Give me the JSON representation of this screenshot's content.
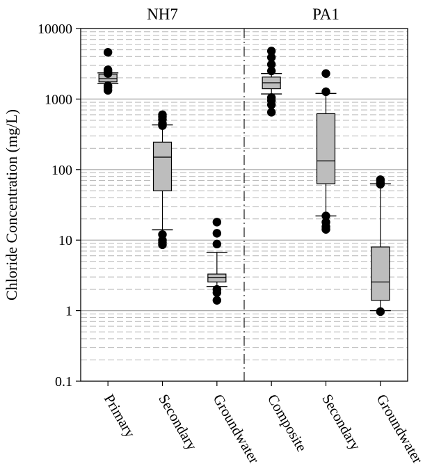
{
  "chart_data": {
    "type": "boxplot",
    "scale": "log",
    "ylabel": "Chloride Concentration (mg/L)",
    "ylim": [
      0.1,
      10000
    ],
    "yticks": [
      {
        "value": 0.1,
        "label": "0.1"
      },
      {
        "value": 1,
        "label": "1"
      },
      {
        "value": 10,
        "label": "10"
      },
      {
        "value": 100,
        "label": "100"
      },
      {
        "value": 1000,
        "label": "1000"
      },
      {
        "value": 10000,
        "label": "10000"
      }
    ],
    "groups": [
      {
        "label": "NH7",
        "start": 0,
        "count": 3
      },
      {
        "label": "PA1",
        "start": 3,
        "count": 3
      }
    ],
    "categories": [
      "Primary",
      "Secondary",
      "Groundwater",
      "Composite",
      "Secondary",
      "Groundwater"
    ],
    "boxes": [
      {
        "name": "Primary",
        "whisker_low": 1650,
        "q1": 1750,
        "median": 1950,
        "q3": 2250,
        "whisker_high": 2350,
        "outliers": [
          4600,
          2600,
          2450,
          2300,
          1550,
          1450,
          1330
        ]
      },
      {
        "name": "Secondary",
        "whisker_low": 14,
        "q1": 50,
        "median": 150,
        "q3": 245,
        "whisker_high": 430,
        "outliers": [
          600,
          560,
          510,
          450,
          420,
          12,
          10,
          9.3,
          8.6
        ]
      },
      {
        "name": "Groundwater",
        "whisker_low": 2.2,
        "q1": 2.55,
        "median": 2.95,
        "q3": 3.3,
        "whisker_high": 6.7,
        "outliers": [
          18,
          12.5,
          8.8,
          2.0,
          1.8,
          1.4
        ]
      },
      {
        "name": "Composite",
        "whisker_low": 1180,
        "q1": 1400,
        "median": 1700,
        "q3": 2050,
        "whisker_high": 2300,
        "outliers": [
          4800,
          3900,
          3100,
          2500,
          1050,
          950,
          830,
          650
        ]
      },
      {
        "name": "Secondary",
        "whisker_low": 22,
        "q1": 63,
        "median": 133,
        "q3": 620,
        "whisker_high": 1200,
        "outliers": [
          2300,
          1270,
          22,
          18,
          15.5,
          14.2
        ]
      },
      {
        "name": "Groundwater",
        "whisker_low": 1.0,
        "q1": 1.4,
        "median": 2.55,
        "q3": 8.0,
        "whisker_high": 63,
        "outliers": [
          72,
          66,
          62,
          0.97
        ]
      }
    ],
    "colors": {
      "box_fill": "#bdbdbd",
      "major_grid": "#a6a6a6",
      "minor_grid": "#bdbdbd",
      "marker": "#000000",
      "frame": "#000000"
    }
  }
}
